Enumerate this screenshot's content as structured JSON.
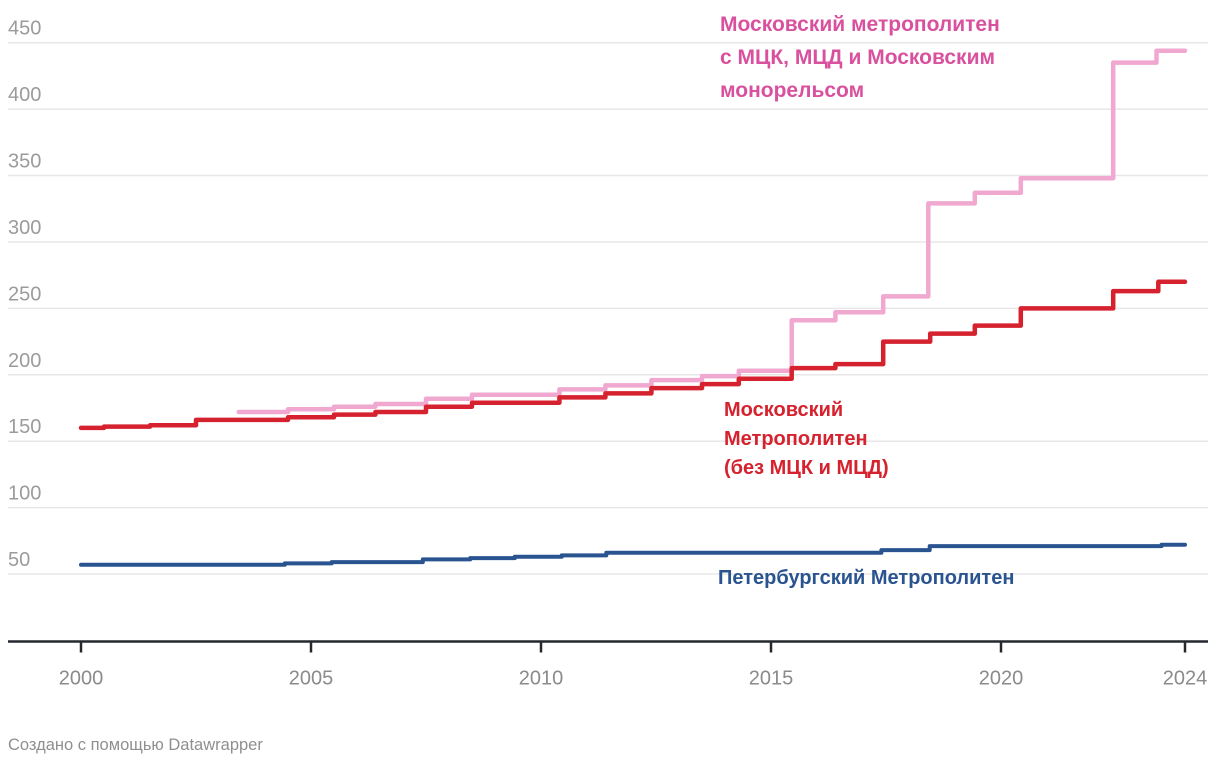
{
  "chart_data": {
    "type": "line",
    "step": true,
    "grid": true,
    "x_domain": [
      2000,
      2024
    ],
    "y_domain": [
      0,
      450
    ],
    "y_ticks": [
      50,
      100,
      150,
      200,
      250,
      300,
      350,
      400,
      450
    ],
    "x_ticks": [
      2000,
      2005,
      2010,
      2015,
      2020,
      2024
    ],
    "series": [
      {
        "name": "Московский метрополитен с МЦК, МЦД и Московским монорельсом",
        "color": "#F1A8D0",
        "stroke_width": 4.5,
        "points": [
          [
            2003.43,
            172
          ],
          [
            2004.5,
            174
          ],
          [
            2005.5,
            176
          ],
          [
            2006.4,
            178
          ],
          [
            2007.5,
            182
          ],
          [
            2008.5,
            185
          ],
          [
            2010.4,
            189
          ],
          [
            2011.4,
            192
          ],
          [
            2012.4,
            196
          ],
          [
            2013.5,
            199
          ],
          [
            2014.3,
            203
          ],
          [
            2015.45,
            241
          ],
          [
            2016.4,
            247
          ],
          [
            2017.44,
            259
          ],
          [
            2018.42,
            329
          ],
          [
            2019.43,
            337
          ],
          [
            2020.43,
            348
          ],
          [
            2022.44,
            435
          ],
          [
            2023.38,
            444
          ],
          [
            2024,
            444
          ]
        ]
      },
      {
        "name": "Московский Метрополитен (без МЦК и МЦД)",
        "color": "#D6222E",
        "stroke_width": 4.5,
        "points": [
          [
            2000,
            160
          ],
          [
            2000.5,
            161
          ],
          [
            2001.5,
            162
          ],
          [
            2002.5,
            166
          ],
          [
            2004.5,
            168
          ],
          [
            2005.5,
            170
          ],
          [
            2006.4,
            172
          ],
          [
            2007.5,
            176
          ],
          [
            2008.5,
            179
          ],
          [
            2010.4,
            183
          ],
          [
            2011.4,
            186
          ],
          [
            2012.4,
            190
          ],
          [
            2013.5,
            193
          ],
          [
            2014.3,
            197
          ],
          [
            2015.45,
            205
          ],
          [
            2016.4,
            208
          ],
          [
            2017.44,
            225
          ],
          [
            2018.46,
            231
          ],
          [
            2019.43,
            237
          ],
          [
            2020.43,
            250
          ],
          [
            2022.44,
            263
          ],
          [
            2023.42,
            270
          ],
          [
            2024,
            270
          ]
        ]
      },
      {
        "name": "Петербургский Метрополитен",
        "color": "#2A5490",
        "stroke_width": 4,
        "points": [
          [
            2000,
            57
          ],
          [
            2004.43,
            58
          ],
          [
            2005.45,
            59
          ],
          [
            2007.43,
            61
          ],
          [
            2008.46,
            62
          ],
          [
            2009.43,
            63
          ],
          [
            2010.45,
            64
          ],
          [
            2011.42,
            66
          ],
          [
            2017.4,
            68
          ],
          [
            2018.45,
            71
          ],
          [
            2023.49,
            72
          ],
          [
            2024,
            72
          ]
        ]
      }
    ]
  },
  "annotations": {
    "pink": {
      "color": "#D9519E",
      "lines": [
        "Московский метрополитен",
        "с МЦК, МЦД и Московским",
        "монорельсом"
      ]
    },
    "red": {
      "color": "#D6222E",
      "lines": [
        "Московский",
        "Метрополитен",
        "(без МЦК и МЦД)"
      ]
    },
    "blue": {
      "color": "#2A5490",
      "lines": [
        "Петербургский Метрополитен"
      ]
    }
  },
  "footer": {
    "credit": "Создано с помощью Datawrapper"
  },
  "colors": {
    "gridline": "#e7e7e7",
    "axis": "#24292e",
    "y_label": "#9b9b9b",
    "x_label": "#8b8b8b",
    "footer": "#8f8f8f",
    "background": "#ffffff"
  }
}
